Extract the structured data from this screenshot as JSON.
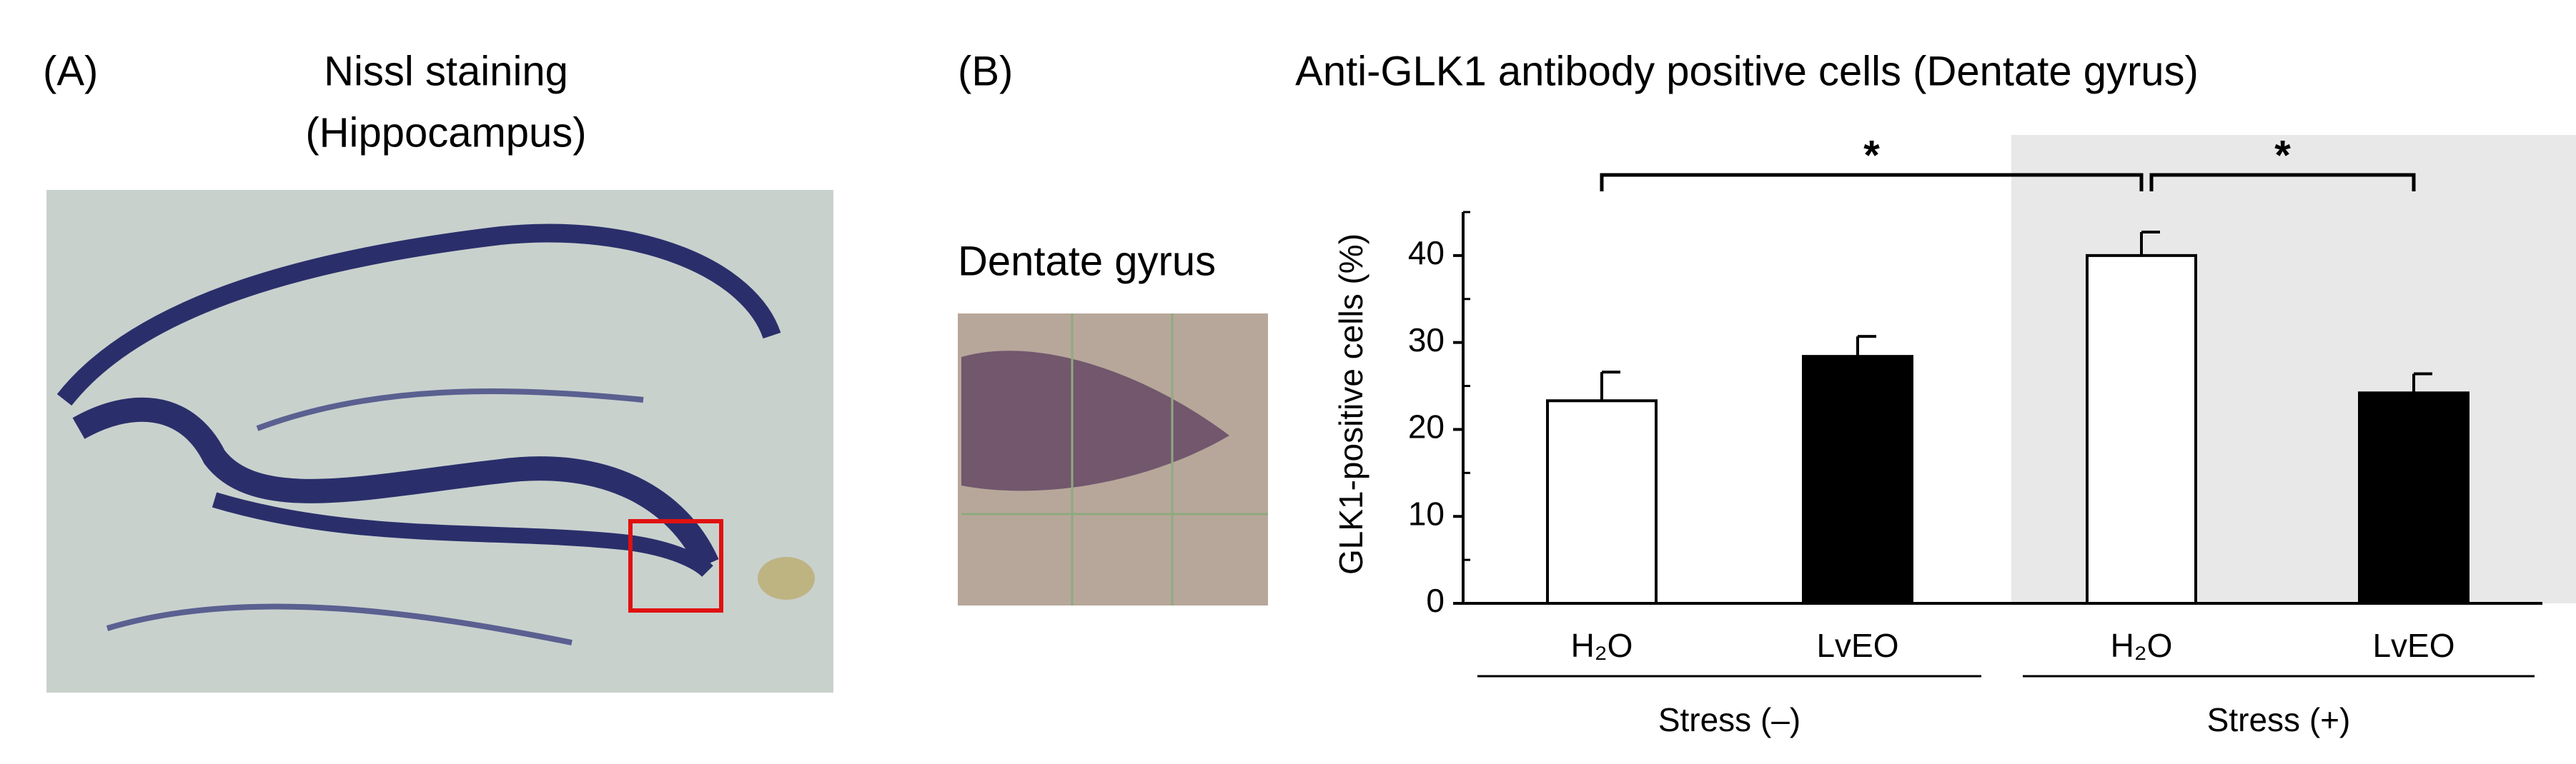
{
  "panel_a": {
    "label": "(A)",
    "title": "Nissl staining",
    "subtitle": "(Hippocampus)"
  },
  "panel_b": {
    "label": "(B)",
    "image_title": "Dentate gyrus"
  },
  "chart_data": {
    "type": "bar",
    "title": "Anti-GLK1 antibody positive cells (Dentate gyrus)",
    "y_label": "GLK1-positive cells (%)",
    "categories": [
      "H₂O",
      "LvEO",
      "H₂O",
      "LvEO"
    ],
    "values": [
      23.3,
      28.4,
      40,
      24.2
    ],
    "errors": [
      3.3,
      2.3,
      2.7,
      2.2
    ],
    "colors": [
      "#ffffff",
      "#000000",
      "#ffffff",
      "#000000"
    ],
    "groups": [
      "Stress (–)",
      "Stress (+)"
    ],
    "shaded_groups": [
      1
    ],
    "shade_color": "#e8e8e8",
    "significance": [
      {
        "from": 0,
        "to": 2,
        "label": "*"
      },
      {
        "from": 2,
        "to": 3,
        "label": "*"
      }
    ],
    "ylim": [
      0,
      45
    ],
    "yticks": [
      0,
      10,
      20,
      30,
      40
    ],
    "minor_yticks": [
      5,
      15,
      25,
      35,
      45
    ]
  }
}
